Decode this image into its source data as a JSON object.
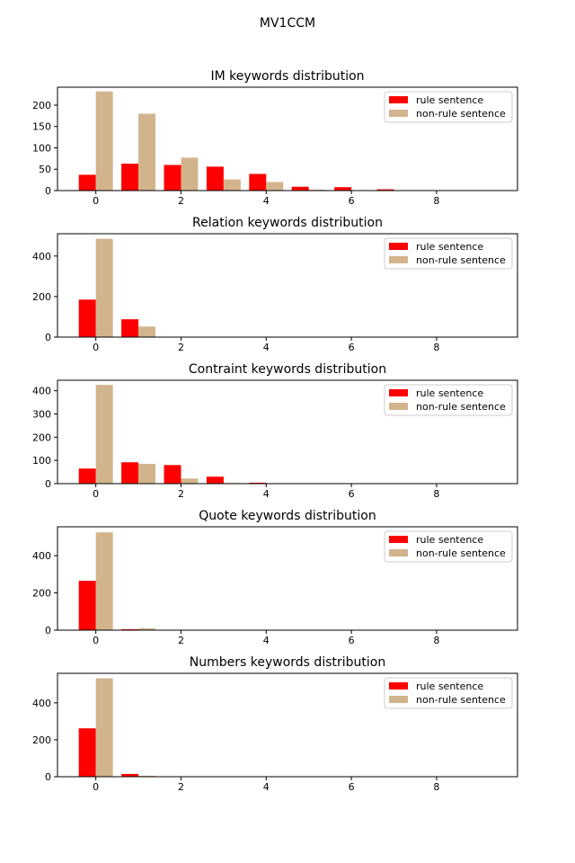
{
  "figure": {
    "suptitle": "MV1CCM"
  },
  "colors": {
    "rule": "#ff0000",
    "non_rule": "#d2b48c",
    "axis": "#000000",
    "background": "#ffffff"
  },
  "chart_data": [
    {
      "type": "bar",
      "title": "IM keywords distribution",
      "xlabel": "",
      "ylabel": "",
      "x": [
        0,
        1,
        2,
        3,
        4,
        5,
        6,
        7,
        8,
        9
      ],
      "xlim": [
        -0.9,
        9.9
      ],
      "ylim": [
        0,
        242
      ],
      "xticks": [
        0,
        2,
        4,
        6,
        8
      ],
      "yticks": [
        0,
        50,
        100,
        150,
        200
      ],
      "legend": "top-right",
      "series": [
        {
          "name": "rule sentence",
          "values": [
            37,
            63,
            60,
            56,
            39,
            9,
            8,
            3,
            0,
            0
          ]
        },
        {
          "name": "non-rule sentence",
          "values": [
            232,
            180,
            77,
            26,
            20,
            2,
            0,
            0,
            0,
            0
          ]
        }
      ]
    },
    {
      "type": "bar",
      "title": "Relation keywords distribution",
      "xlabel": "",
      "ylabel": "",
      "x": [
        0,
        1,
        2,
        3,
        4,
        5,
        6,
        7,
        8,
        9
      ],
      "xlim": [
        -0.9,
        9.9
      ],
      "ylim": [
        0,
        510
      ],
      "xticks": [
        0,
        2,
        4,
        6,
        8
      ],
      "yticks": [
        0,
        200,
        400
      ],
      "legend": "top-right",
      "series": [
        {
          "name": "rule sentence",
          "values": [
            185,
            88,
            0,
            0,
            0,
            0,
            0,
            0,
            0,
            0
          ]
        },
        {
          "name": "non-rule sentence",
          "values": [
            485,
            52,
            0,
            0,
            0,
            0,
            0,
            0,
            0,
            0
          ]
        }
      ]
    },
    {
      "type": "bar",
      "title": "Contraint keywords distribution",
      "xlabel": "",
      "ylabel": "",
      "x": [
        0,
        1,
        2,
        3,
        4,
        5,
        6,
        7,
        8,
        9
      ],
      "xlim": [
        -0.9,
        9.9
      ],
      "ylim": [
        0,
        445
      ],
      "xticks": [
        0,
        2,
        4,
        6,
        8
      ],
      "yticks": [
        0,
        100,
        200,
        300,
        400
      ],
      "legend": "top-right",
      "series": [
        {
          "name": "rule sentence",
          "values": [
            65,
            92,
            80,
            30,
            4,
            0,
            0,
            0,
            0,
            0
          ]
        },
        {
          "name": "non-rule sentence",
          "values": [
            425,
            85,
            22,
            3,
            0,
            0,
            0,
            0,
            0,
            0
          ]
        }
      ]
    },
    {
      "type": "bar",
      "title": "Quote keywords distribution",
      "xlabel": "",
      "ylabel": "",
      "x": [
        0,
        1,
        2,
        3,
        4,
        5,
        6,
        7,
        8,
        9
      ],
      "xlim": [
        -0.9,
        9.9
      ],
      "ylim": [
        0,
        555
      ],
      "xticks": [
        0,
        2,
        4,
        6,
        8
      ],
      "yticks": [
        0,
        200,
        400
      ],
      "legend": "top-right",
      "series": [
        {
          "name": "rule sentence",
          "values": [
            265,
            5,
            0,
            0,
            0,
            0,
            0,
            0,
            0,
            0
          ]
        },
        {
          "name": "non-rule sentence",
          "values": [
            525,
            10,
            0,
            0,
            0,
            0,
            0,
            0,
            0,
            0
          ]
        }
      ]
    },
    {
      "type": "bar",
      "title": "Numbers keywords distribution",
      "xlabel": "",
      "ylabel": "",
      "x": [
        0,
        1,
        2,
        3,
        4,
        5,
        6,
        7,
        8,
        9
      ],
      "xlim": [
        -0.9,
        9.9
      ],
      "ylim": [
        0,
        560
      ],
      "xticks": [
        0,
        2,
        4,
        6,
        8
      ],
      "yticks": [
        0,
        200,
        400
      ],
      "legend": "top-right",
      "series": [
        {
          "name": "rule sentence",
          "values": [
            262,
            15,
            0,
            0,
            0,
            0,
            0,
            0,
            0,
            0
          ]
        },
        {
          "name": "non-rule sentence",
          "values": [
            533,
            5,
            0,
            0,
            0,
            0,
            0,
            0,
            0,
            0
          ]
        }
      ]
    }
  ]
}
